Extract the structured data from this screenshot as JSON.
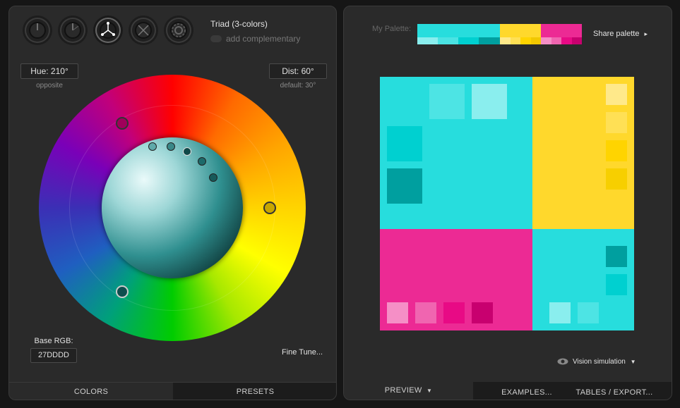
{
  "scheme": {
    "title": "Triad (3-colors)",
    "complementary_label": "add complementary",
    "mode_icons": [
      "mono-icon",
      "complement-icon",
      "triad-icon",
      "tetrad-icon",
      "freestyle-icon"
    ]
  },
  "hue": {
    "label": "Hue: 210°",
    "hint": "opposite"
  },
  "distance": {
    "label": "Dist: 60°",
    "hint": "default: 30°"
  },
  "base_rgb": {
    "label": "Base RGB:",
    "value": "27DDDD"
  },
  "fine_tune": "Fine Tune...",
  "left_tabs": {
    "colors": "COLORS",
    "presets": "PRESETS"
  },
  "palette": {
    "label": "My Palette:",
    "share": "Share palette",
    "share_arrow": "▸"
  },
  "preview_colors": {
    "cyan": "#27DDDD",
    "yellow": "#FFD82C",
    "magenta": "#EC2A94"
  },
  "vision": {
    "label": "Vision simulation",
    "arrow": "▼"
  },
  "right_tabs": {
    "preview": "PREVIEW",
    "preview_arrow": "▼",
    "examples": "EXAMPLES...",
    "tables": "TABLES / EXPORT..."
  }
}
